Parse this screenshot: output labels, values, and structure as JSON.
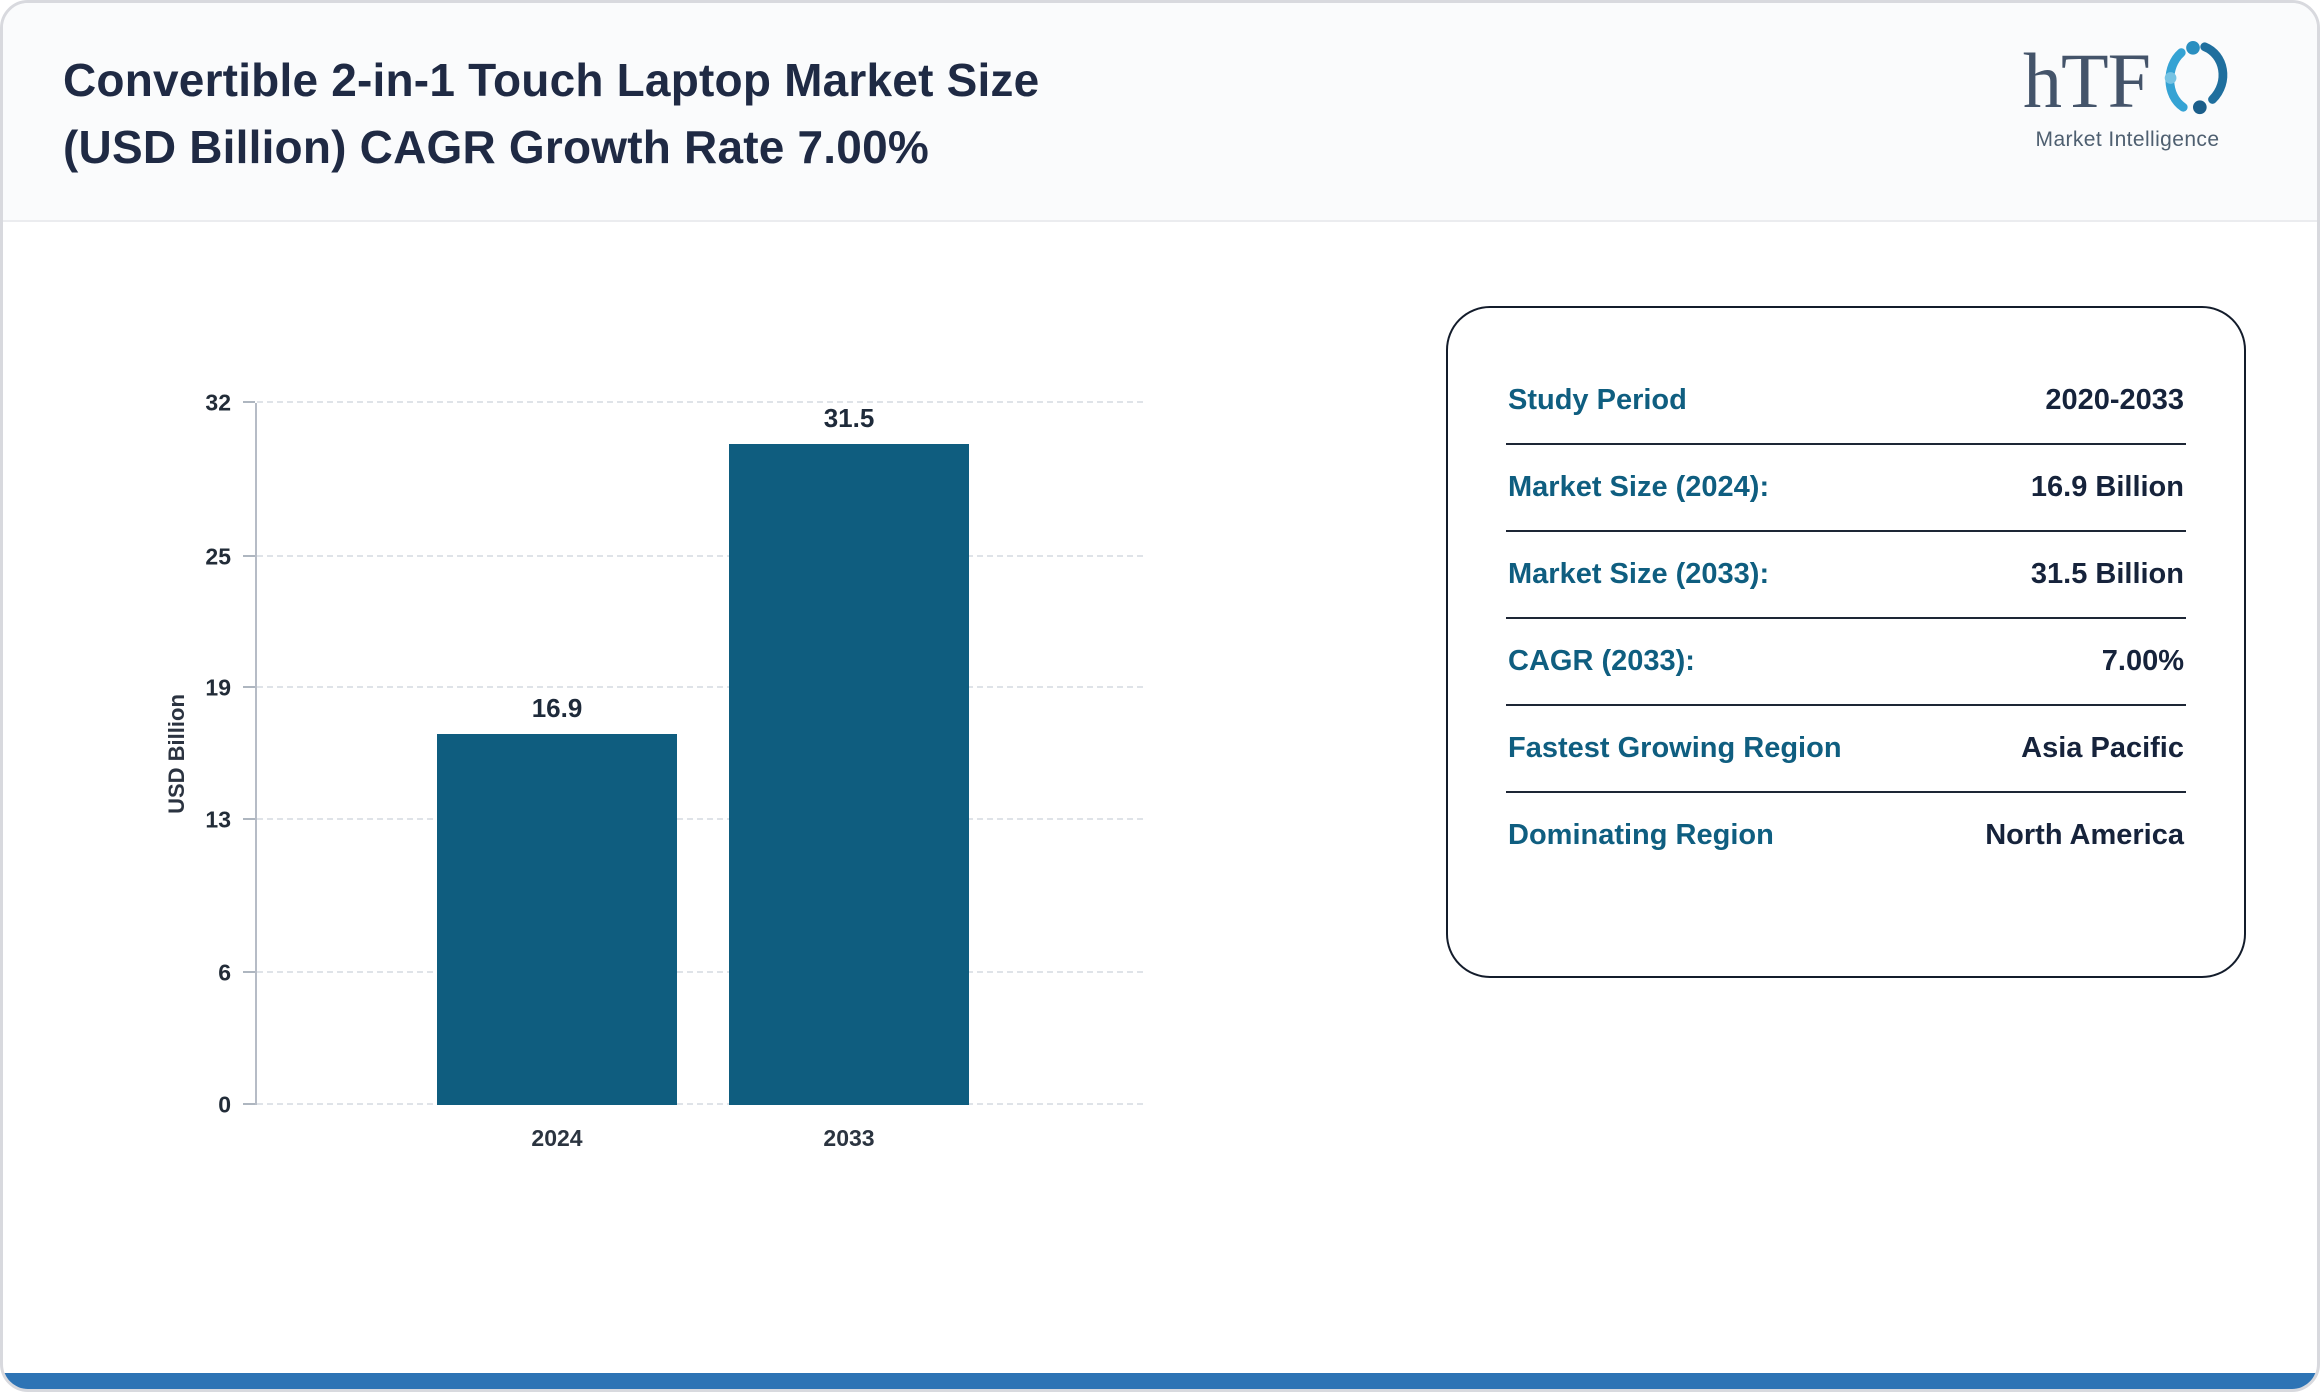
{
  "header": {
    "title_line1": "Convertible 2-in-1 Touch Laptop Market Size",
    "title_line2": "(USD Billion) CAGR Growth Rate 7.00%",
    "logo": {
      "text": "hTF",
      "subtext": "Market Intelligence"
    }
  },
  "chart_data": {
    "type": "bar",
    "categories": [
      "2024",
      "2033"
    ],
    "values": [
      16.9,
      31.5
    ],
    "value_labels": [
      "16.9",
      "31.5"
    ],
    "title": "",
    "xlabel": "",
    "ylabel": "USD Billion",
    "yticks": [
      0,
      6,
      13,
      19,
      25,
      32
    ],
    "ylim": [
      0,
      32
    ],
    "grid": true,
    "bar_color": "#0f5d7f"
  },
  "info_card": {
    "rows": [
      {
        "label": "Study Period",
        "value": "2020-2033"
      },
      {
        "label": "Market Size (2024):",
        "value": "16.9 Billion"
      },
      {
        "label": "Market Size (2033):",
        "value": "31.5 Billion"
      },
      {
        "label": "CAGR (2033):",
        "value": "7.00%"
      },
      {
        "label": "Fastest Growing Region",
        "value": "Asia Pacific"
      },
      {
        "label": "Dominating Region",
        "value": "North America"
      }
    ]
  },
  "colors": {
    "accent_teal": "#0f5d7f",
    "navy_text": "#1f2a44",
    "footer_blue": "#2e74b5",
    "logo_blue_light": "#35a3d4",
    "logo_blue_dark": "#1f6f9e"
  }
}
